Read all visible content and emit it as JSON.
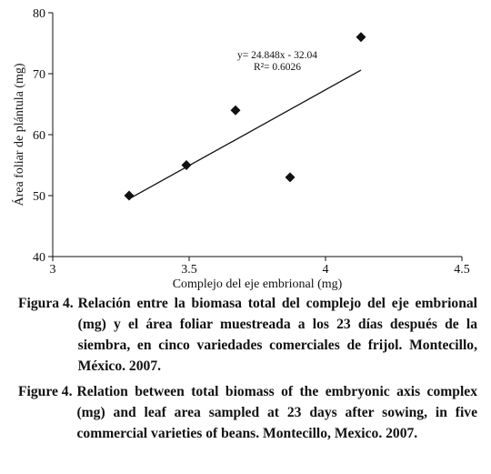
{
  "chart_data": {
    "type": "scatter",
    "xlabel": "Complejo del eje embrional (mg)",
    "ylabel": "Área foliar de plántula (mg)",
    "xlim": [
      3,
      4.5
    ],
    "ylim": [
      40,
      80
    ],
    "xticks": [
      "3",
      "3.5",
      "4",
      "4.5"
    ],
    "yticks": [
      "40",
      "50",
      "60",
      "70",
      "80"
    ],
    "points": [
      {
        "x": 3.28,
        "y": 50
      },
      {
        "x": 3.49,
        "y": 55
      },
      {
        "x": 3.67,
        "y": 64
      },
      {
        "x": 3.87,
        "y": 53
      },
      {
        "x": 4.13,
        "y": 76
      }
    ],
    "trendline": {
      "slope": 24.848,
      "intercept": -32.04,
      "x_range": [
        3.28,
        4.13
      ],
      "equation": "y= 24.848x - 32.04",
      "r2": "R²= 0.6026"
    }
  },
  "caption_es": {
    "label": "Figura 4.",
    "text": "Relación entre la biomasa total del complejo del eje embrional (mg) y el área foliar muestreada a los 23 días después de la siembra, en cinco variedades comerciales de frijol. Montecillo, México. 2007."
  },
  "caption_en": {
    "label": "Figure 4.",
    "text": "Relation between total biomass of the embryonic axis complex (mg) and leaf area sampled at 23 days after sowing, in five commercial varieties of beans. Montecillo, Mexico. 2007."
  }
}
